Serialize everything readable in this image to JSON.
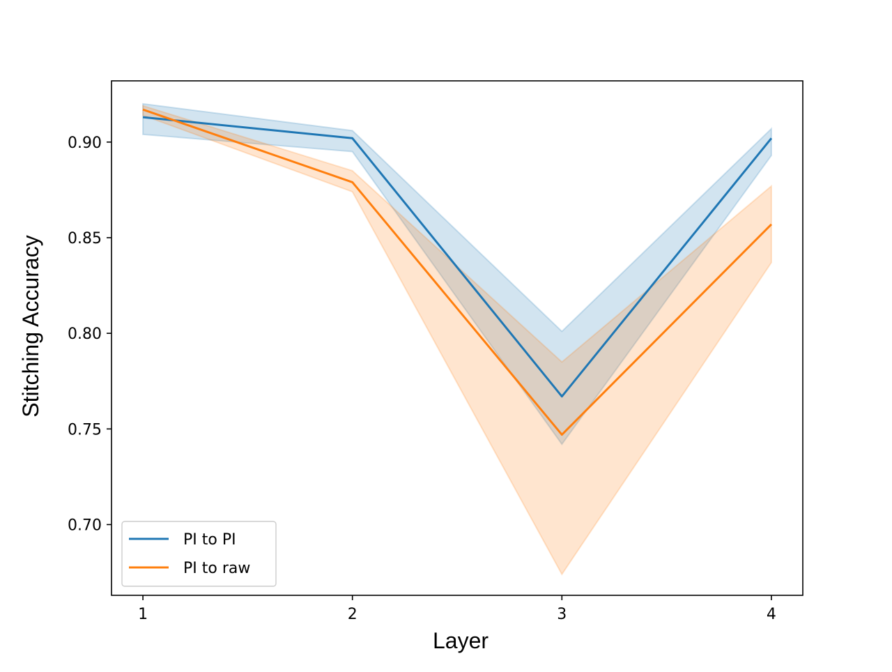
{
  "chart_data": {
    "type": "line",
    "title": "",
    "xlabel": "Layer",
    "ylabel": "Stitching Accuracy",
    "x": [
      1,
      2,
      3,
      4
    ],
    "xticks": [
      "1",
      "2",
      "3",
      "4"
    ],
    "xlim": [
      0.85,
      4.15
    ],
    "ylim": [
      0.663,
      0.932
    ],
    "yticks": [
      "0.70",
      "0.75",
      "0.80",
      "0.85",
      "0.90"
    ],
    "ytick_values": [
      0.7,
      0.75,
      0.8,
      0.85,
      0.9
    ],
    "grid": false,
    "legend_position": "lower-left",
    "series": [
      {
        "name": "PI to PI",
        "color": "#1f77b4",
        "values": [
          0.913,
          0.902,
          0.767,
          0.902
        ],
        "lower": [
          0.904,
          0.895,
          0.742,
          0.893
        ],
        "upper": [
          0.92,
          0.906,
          0.801,
          0.907
        ]
      },
      {
        "name": "PI to raw",
        "color": "#ff7f0e",
        "values": [
          0.917,
          0.879,
          0.747,
          0.857
        ],
        "lower": [
          0.914,
          0.874,
          0.674,
          0.837
        ],
        "upper": [
          0.919,
          0.885,
          0.785,
          0.877
        ]
      }
    ]
  }
}
